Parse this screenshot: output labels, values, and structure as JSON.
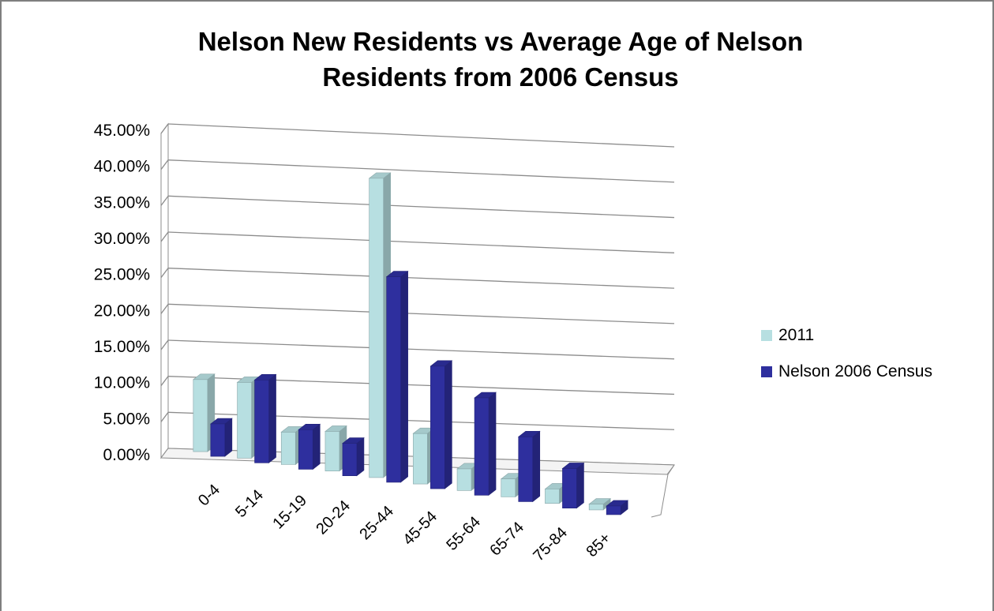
{
  "chart_data": {
    "type": "bar",
    "title_lines": [
      "Nelson New Residents vs Average Age of Nelson",
      "Residents from 2006 Census"
    ],
    "categories": [
      "0-4",
      "5-14",
      "15-19",
      "20-24",
      "25-44",
      "45-54",
      "55-64",
      "65-74",
      "75-84",
      "85+"
    ],
    "series": [
      {
        "name": "2011",
        "values": [
          10.0,
          10.5,
          4.5,
          5.5,
          41.5,
          7.0,
          3.0,
          2.5,
          2.0,
          0.8
        ],
        "color": "#b7dfe1"
      },
      {
        "name": "Nelson 2006 Census",
        "values": [
          4.5,
          11.5,
          5.5,
          4.5,
          28.5,
          17.0,
          13.5,
          9.0,
          5.5,
          1.2
        ],
        "color": "#2e2f9e"
      }
    ],
    "ylim": [
      0,
      45
    ],
    "y_ticks": [
      "0.00%",
      "5.00%",
      "10.00%",
      "15.00%",
      "20.00%",
      "25.00%",
      "30.00%",
      "35.00%",
      "40.00%",
      "45.00%"
    ],
    "grid": true,
    "legend_position": "right"
  }
}
